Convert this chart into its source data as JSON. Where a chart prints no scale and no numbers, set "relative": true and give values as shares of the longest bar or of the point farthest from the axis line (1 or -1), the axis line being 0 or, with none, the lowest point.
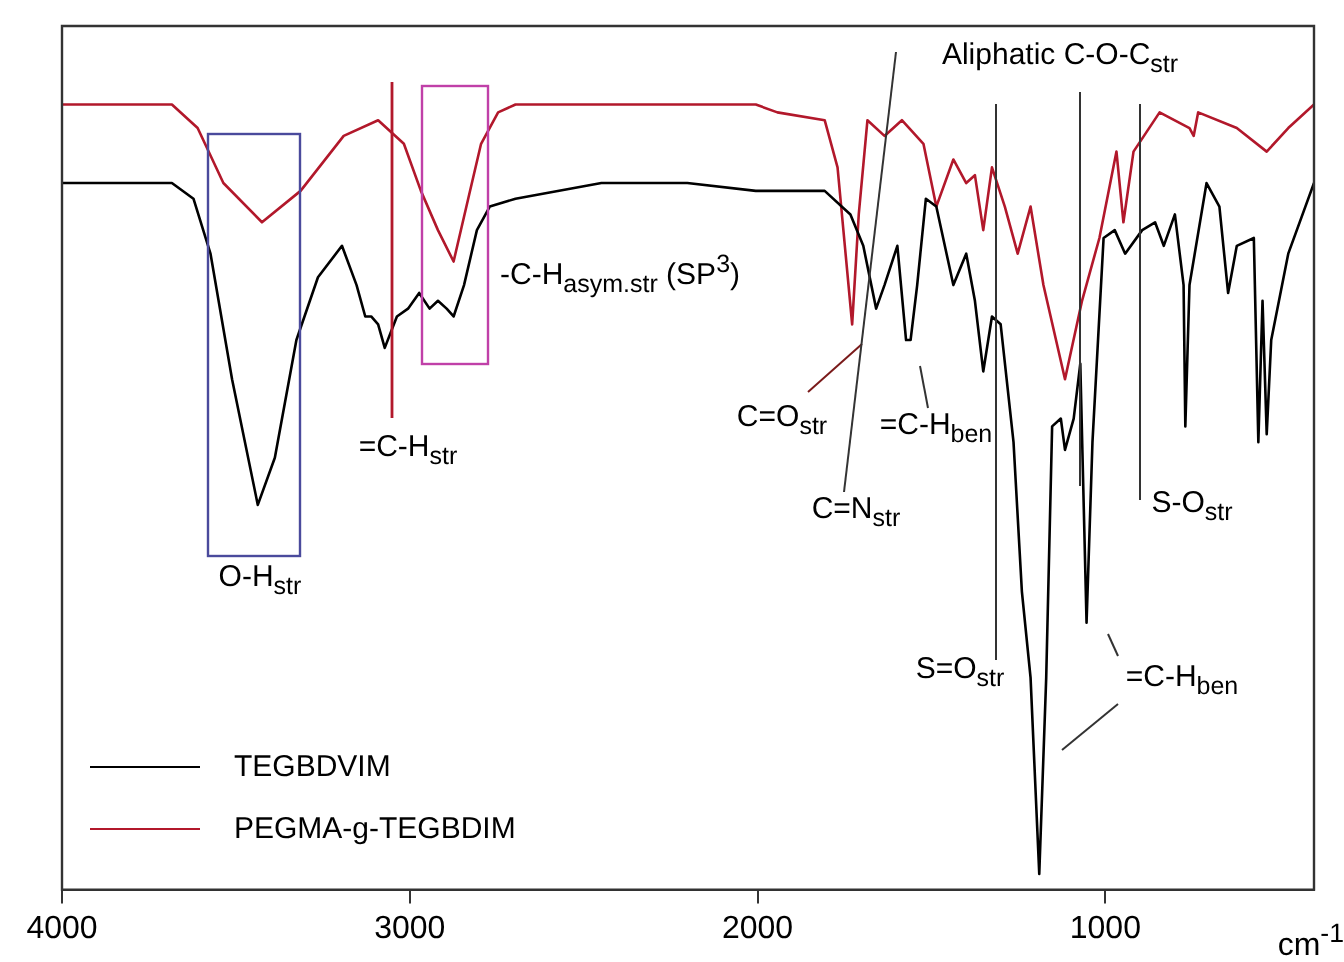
{
  "chart_data": {
    "type": "line",
    "relative": true,
    "xlabel": "cm$^{-1}$",
    "xlim": [
      4000,
      400
    ],
    "xticks": [
      4000,
      3000,
      2000,
      1000
    ],
    "grid": false,
    "legend": "bottom left",
    "marker": "none",
    "series": [
      {
        "name": "TEGBDVIM",
        "color": "#000000",
        "x": [
          4000,
          3684,
          3622,
          3573,
          3511,
          3437,
          3388,
          3326,
          3264,
          3195,
          3153,
          3128,
          3111,
          3091,
          3072,
          3037,
          3005,
          2973,
          2943,
          2919,
          2894,
          2874,
          2844,
          2807,
          2770,
          2696,
          2449,
          2202,
          2005,
          1807,
          1733,
          1696,
          1659,
          1635,
          1598,
          1573,
          1560,
          1541,
          1516,
          1486,
          1437,
          1400,
          1375,
          1351,
          1326,
          1301,
          1264,
          1240,
          1215,
          1190,
          1170,
          1153,
          1128,
          1116,
          1091,
          1072,
          1054,
          1037,
          1005,
          973,
          943,
          894,
          857,
          832,
          800,
          775,
          770,
          758,
          709,
          672,
          647,
          622,
          573,
          560,
          548,
          536,
          523,
          474,
          400
        ],
        "values": [
          0.9,
          0.9,
          0.88,
          0.81,
          0.65,
          0.49,
          0.55,
          0.7,
          0.78,
          0.82,
          0.77,
          0.73,
          0.73,
          0.72,
          0.69,
          0.73,
          0.74,
          0.76,
          0.74,
          0.75,
          0.74,
          0.73,
          0.77,
          0.84,
          0.87,
          0.88,
          0.9,
          0.9,
          0.89,
          0.89,
          0.86,
          0.82,
          0.74,
          0.77,
          0.82,
          0.7,
          0.7,
          0.77,
          0.88,
          0.87,
          0.77,
          0.81,
          0.75,
          0.66,
          0.73,
          0.72,
          0.57,
          0.38,
          0.27,
          0.02,
          0.27,
          0.59,
          0.6,
          0.56,
          0.6,
          0.67,
          0.34,
          0.57,
          0.83,
          0.84,
          0.81,
          0.84,
          0.85,
          0.82,
          0.86,
          0.77,
          0.59,
          0.77,
          0.9,
          0.87,
          0.76,
          0.82,
          0.83,
          0.57,
          0.75,
          0.58,
          0.7,
          0.81,
          0.9
        ]
      },
      {
        "name": "PEGMA-g-TEGBDIM",
        "color": "#b2182b",
        "x": [
          4000,
          3684,
          3610,
          3536,
          3425,
          3314,
          3190,
          3091,
          3017,
          2968,
          2919,
          2874,
          2832,
          2795,
          2746,
          2696,
          2005,
          1943,
          1807,
          1770,
          1728,
          1709,
          1684,
          1635,
          1585,
          1523,
          1486,
          1437,
          1400,
          1375,
          1351,
          1326,
          1289,
          1252,
          1215,
          1178,
          1116,
          1067,
          1017,
          968,
          948,
          919,
          844,
          758,
          746,
          733,
          622,
          536,
          474,
          400
        ],
        "values": [
          1.0,
          1.0,
          0.97,
          0.9,
          0.85,
          0.89,
          0.96,
          0.98,
          0.95,
          0.89,
          0.84,
          0.8,
          0.88,
          0.95,
          0.99,
          1.0,
          1.0,
          0.99,
          0.98,
          0.92,
          0.72,
          0.86,
          0.98,
          0.96,
          0.98,
          0.95,
          0.87,
          0.93,
          0.9,
          0.91,
          0.84,
          0.92,
          0.87,
          0.81,
          0.87,
          0.77,
          0.65,
          0.75,
          0.83,
          0.94,
          0.85,
          0.94,
          0.99,
          0.97,
          0.96,
          0.99,
          0.97,
          0.94,
          0.97,
          1.0
        ]
      }
    ],
    "annotations": [
      "O-H$_{str}$",
      "=C-H$_{str}$",
      "-C-H$_{asym.str}$ (SP$^{3}$)",
      "C=O$_{str}$",
      "C=N$_{str}$",
      "=C-H$_{ben}$",
      "Aliphatic C-O-C$_{str}$",
      "S-O$_{str}$",
      "S=O$_{str}$",
      "=C-H$_{ben}$"
    ]
  }
}
